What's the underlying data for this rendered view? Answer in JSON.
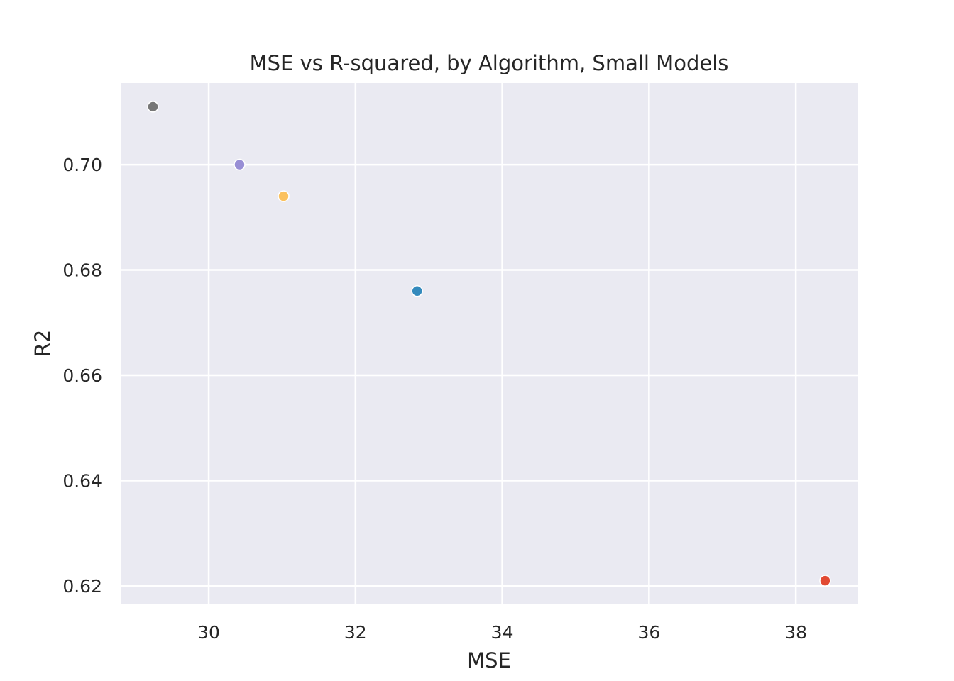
{
  "chart_data": {
    "type": "scatter",
    "title": "MSE vs R-squared, by Algorithm, Small Models",
    "xlabel": "MSE",
    "ylabel": "R2",
    "xlim": [
      28.8,
      38.85
    ],
    "ylim": [
      0.6165,
      0.7155
    ],
    "xticks": [
      30,
      32,
      34,
      36,
      38
    ],
    "yticks": [
      0.62,
      0.64,
      0.66,
      0.68,
      0.7
    ],
    "xtick_labels": [
      "30",
      "32",
      "34",
      "36",
      "38"
    ],
    "ytick_labels": [
      "0.62",
      "0.64",
      "0.66",
      "0.68",
      "0.70"
    ],
    "grid": true,
    "points": [
      {
        "x": 29.24,
        "y": 0.711,
        "color": "#777777"
      },
      {
        "x": 30.42,
        "y": 0.7,
        "color": "#988ed5"
      },
      {
        "x": 31.02,
        "y": 0.694,
        "color": "#fbc15e"
      },
      {
        "x": 32.84,
        "y": 0.676,
        "color": "#348abd"
      },
      {
        "x": 38.4,
        "y": 0.621,
        "color": "#e24a33"
      }
    ]
  }
}
